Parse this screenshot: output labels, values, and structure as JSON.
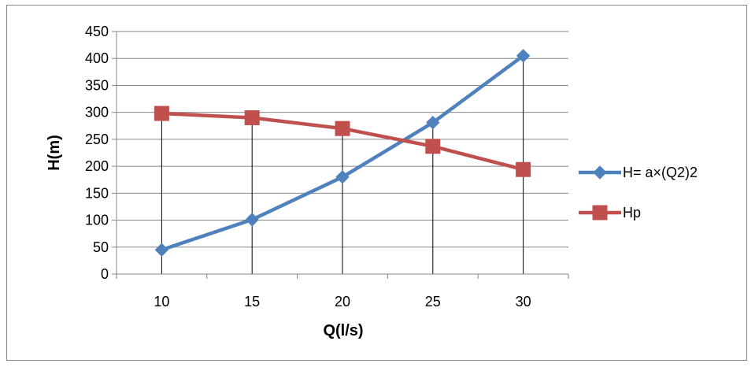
{
  "chart_data": {
    "type": "line",
    "title": "",
    "xlabel": "Q(l/s)",
    "ylabel": "H(m)",
    "categories": [
      "10",
      "15",
      "20",
      "25",
      "30"
    ],
    "ylim": [
      0,
      450
    ],
    "yticks": [
      0,
      50,
      100,
      150,
      200,
      250,
      300,
      350,
      400,
      450
    ],
    "grid": "horizontal",
    "legend_position": "right",
    "drop_lines": true,
    "series": [
      {
        "name": "H= a×(Q2)2",
        "values": [
          45,
          101,
          180,
          281,
          405
        ],
        "color": "#4F81BD",
        "marker": "diamond"
      },
      {
        "name": "Hp",
        "values": [
          298,
          290,
          270,
          237,
          194
        ],
        "color": "#C0504D",
        "marker": "square"
      }
    ]
  }
}
